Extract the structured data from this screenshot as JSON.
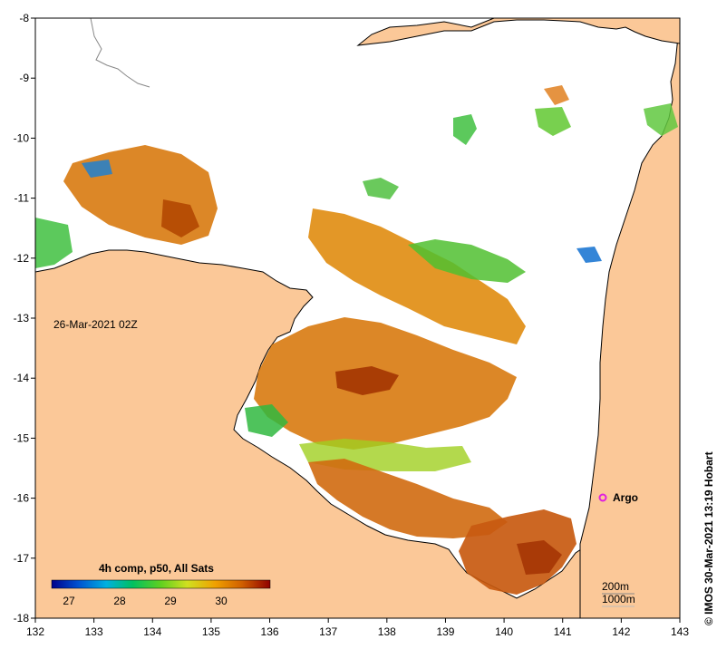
{
  "map": {
    "timestamp": "26-Mar-2021 02Z",
    "credit": "© IMOS 30-Mar-2021 13:19 Hobart",
    "argo_label": "Argo",
    "depth_contours": [
      "200m",
      "1000m"
    ],
    "x_axis": {
      "min": 132,
      "max": 143,
      "ticks": [
        "132",
        "133",
        "134",
        "135",
        "136",
        "137",
        "138",
        "139",
        "140",
        "141",
        "142",
        "143"
      ]
    },
    "y_axis": {
      "min": -18,
      "max": -8,
      "ticks": [
        "-8",
        "-9",
        "-10",
        "-11",
        "-12",
        "-13",
        "-14",
        "-15",
        "-16",
        "-17",
        "-18"
      ]
    },
    "colors": {
      "land": "#fbc898",
      "water": "#ffffff",
      "argo": "#e020e0"
    }
  },
  "legend": {
    "title": "4h comp, p50, All Sats",
    "ticks": [
      "27",
      "28",
      "29",
      "30"
    ],
    "colors": [
      "#00008b",
      "#0050d0",
      "#00b0e0",
      "#00c060",
      "#60d020",
      "#d0e020",
      "#f0a000",
      "#d06000",
      "#900000"
    ]
  }
}
